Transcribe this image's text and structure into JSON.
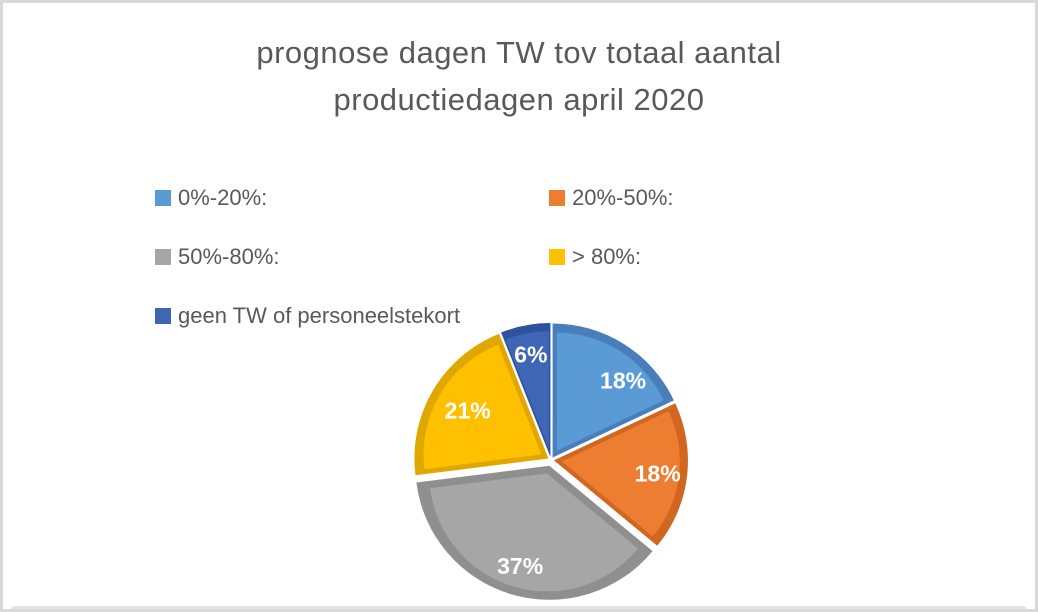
{
  "window": {
    "background": "#FFFFFF",
    "border_color": "#D9D9D9",
    "bottom_bar_color": "#E4E4E4"
  },
  "title": {
    "line1": "prognose dagen TW tov totaal aantal",
    "line2": "productiedagen april 2020",
    "color": "#595959"
  },
  "chart_data": {
    "type": "pie",
    "title": "prognose dagen TW tov totaal aantal productiedagen april 2020",
    "labels": [
      "0%-20%:",
      "20%-50%:",
      "50%-80%:",
      "> 80%:",
      "geen TW of personeelstekort"
    ],
    "values": [
      18,
      18,
      37,
      21,
      6
    ],
    "data_labels": [
      "18%",
      "18%",
      "37%",
      "21%",
      "6%"
    ],
    "colors": [
      "#5B9BD5",
      "#ED7D31",
      "#A6A6A6",
      "#FFC000",
      "#3E66B4"
    ],
    "edge_colors": [
      "#4A7EBA",
      "#D0661F",
      "#8F8F8F",
      "#DFA700",
      "#2F529E"
    ],
    "start_angle_deg": 0,
    "direction": "clockwise",
    "data_label_color": "#FFFFFF",
    "legend_position": "top-left",
    "legend_columns": 2,
    "legend_text_color": "#595959"
  }
}
